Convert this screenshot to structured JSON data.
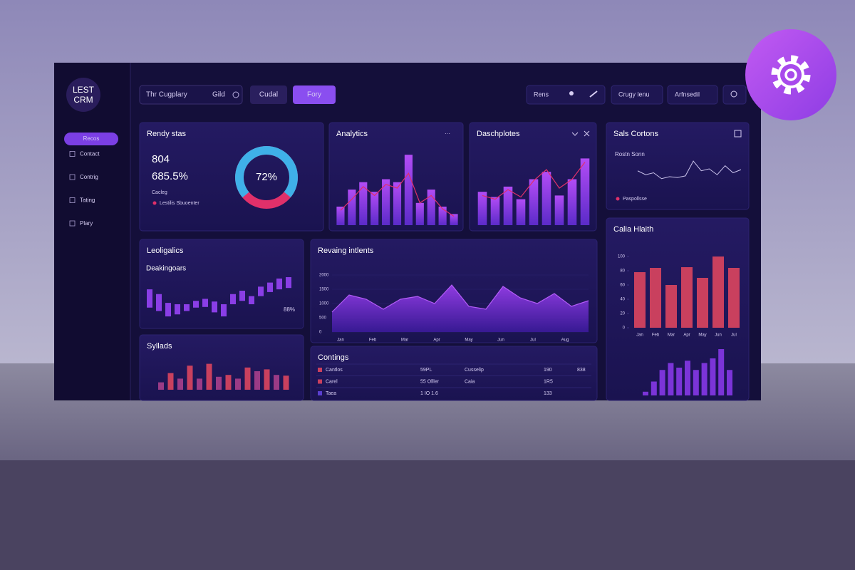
{
  "logo": [
    "LEST",
    "CRM"
  ],
  "sidebar": {
    "items": [
      "Recos",
      "Contact",
      "Contrig",
      "Tating",
      "Plary"
    ]
  },
  "topbar": {
    "search": "Thr Cugplary",
    "search_tag": "Gild",
    "buttons": [
      "Cudal",
      "Fory"
    ],
    "right": [
      "Rens",
      "Crugy lenu",
      "Arfnsedil"
    ]
  },
  "donut": {
    "title": "Rendy stas",
    "stats": [
      "804",
      "685.5%"
    ],
    "caption": "Cacleg",
    "legend": "Lestilis Sbuoenter",
    "percent": {
      "value": 72,
      "label": "72%"
    }
  },
  "analytics": {
    "title": "Analytics",
    "values": [
      25,
      48,
      58,
      45,
      62,
      58,
      95,
      30,
      48,
      25,
      15
    ],
    "trend": [
      20,
      35,
      52,
      40,
      55,
      50,
      70,
      30,
      40,
      22,
      12
    ]
  },
  "dashpletes": {
    "title": "Daschplotes",
    "values": [
      45,
      38,
      52,
      35,
      62,
      72,
      40,
      62,
      90
    ],
    "trend": [
      40,
      35,
      48,
      38,
      60,
      75,
      50,
      62,
      85
    ]
  },
  "sales": {
    "title": "Sals Cortons",
    "subtitle": "Rostn Sonn",
    "legend": "Paspollsse",
    "values": [
      55,
      45,
      50,
      35,
      40,
      38,
      42,
      80,
      55,
      60,
      45,
      68,
      50,
      58
    ]
  },
  "lead": {
    "title": "Leoligalics",
    "subtitle": "Deakingoars",
    "note": "88%",
    "ranges": [
      [
        35,
        62
      ],
      [
        30,
        55
      ],
      [
        22,
        42
      ],
      [
        25,
        40
      ],
      [
        30,
        40
      ],
      [
        35,
        45
      ],
      [
        36,
        48
      ],
      [
        28,
        44
      ],
      [
        22,
        40
      ],
      [
        40,
        55
      ],
      [
        45,
        60
      ],
      [
        40,
        52
      ],
      [
        52,
        66
      ],
      [
        58,
        72
      ],
      [
        62,
        78
      ],
      [
        64,
        80
      ]
    ]
  },
  "sylads": {
    "title": "Syllads",
    "values": [
      20,
      45,
      30,
      65,
      30,
      70,
      35,
      40,
      30,
      60,
      50,
      55,
      40,
      38
    ]
  },
  "revenue": {
    "title": "Revaing intlents",
    "ylim": [
      0,
      2000
    ],
    "yticks": [
      0,
      500,
      1000,
      1500,
      2000
    ],
    "xticks": [
      "Jan",
      "Feb",
      "Mar",
      "Apr",
      "May",
      "Jun",
      "Jul",
      "Aug"
    ],
    "values": [
      700,
      1300,
      1150,
      800,
      1150,
      1250,
      1000,
      1650,
      900,
      800,
      1600,
      1200,
      1000,
      1350,
      900,
      1100
    ]
  },
  "table": {
    "title": "Contings",
    "rows": [
      [
        "Cantlos",
        "59PL",
        "Cusselip",
        "190",
        "838"
      ],
      [
        "Carel",
        "55 Olller",
        "Caia",
        "1R5",
        ""
      ],
      [
        "Taea",
        "1 IO 1.6",
        "",
        "133",
        ""
      ]
    ]
  },
  "health": {
    "title": "Calia Hlaith",
    "ylim": [
      0,
      100
    ],
    "yticks": [
      0,
      20,
      40,
      60,
      80,
      100
    ],
    "xticks": [
      "Jan",
      "Feb",
      "Mar",
      "Apr",
      "May",
      "Jun",
      "Jul"
    ],
    "values": [
      78,
      84,
      60,
      85,
      70,
      100,
      84
    ],
    "bars": [
      8,
      30,
      55,
      70,
      60,
      75,
      55,
      70,
      80,
      100,
      55
    ]
  }
}
